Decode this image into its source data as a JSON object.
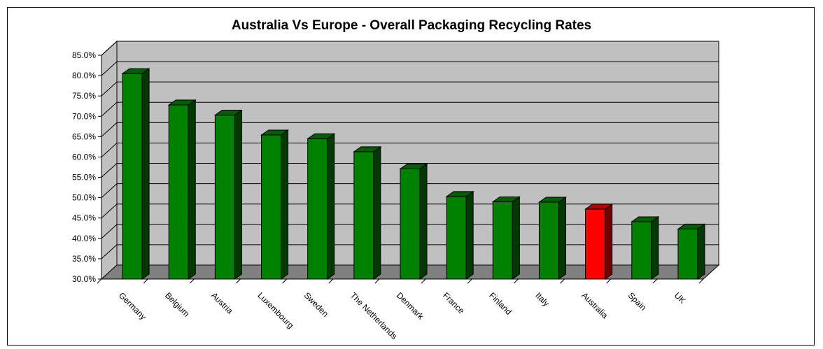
{
  "chart_data": {
    "type": "bar",
    "title": "Australia Vs Europe - Overall Packaging Recycling Rates",
    "xlabel": "",
    "ylabel": "",
    "categories": [
      "Germany",
      "Belgium",
      "Austria",
      "Luxembourg",
      "Sweden",
      "The Netherlands",
      "Denmark",
      "France",
      "Finland",
      "Italy",
      "Australia",
      "Spain",
      "UK"
    ],
    "values": [
      80.5,
      72.8,
      70.3,
      65.4,
      64.5,
      61.3,
      57.1,
      50.3,
      49.0,
      48.9,
      47.2,
      44.1,
      42.3
    ],
    "ylim": [
      30,
      85
    ],
    "ytick_labels": [
      "30.0%",
      "35.0%",
      "40.0%",
      "45.0%",
      "50.0%",
      "55.0%",
      "60.0%",
      "65.0%",
      "70.0%",
      "75.0%",
      "80.0%",
      "85.0%"
    ],
    "grid": true,
    "style": "3d-column",
    "colors": {
      "default_bar": "#008000",
      "highlight_bar": "#ff0000",
      "highlight_category": "Australia",
      "back_wall": "#c0c0c0",
      "floor": "#808080"
    }
  }
}
